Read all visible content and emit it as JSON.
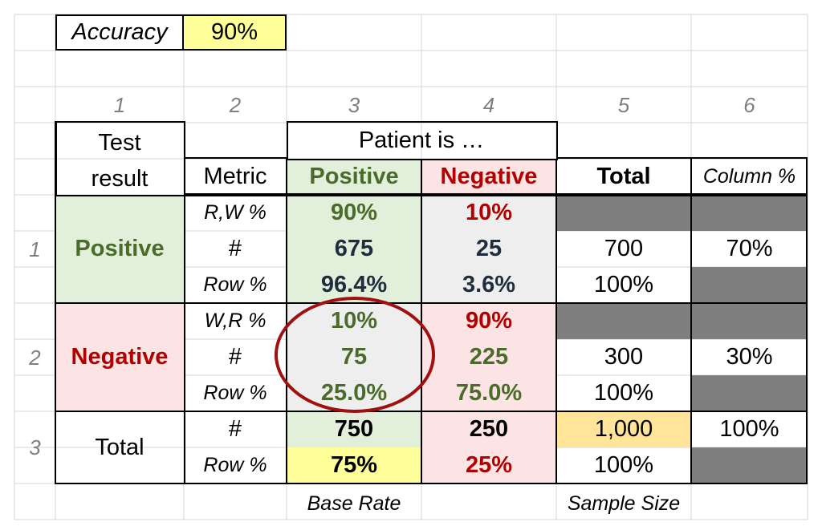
{
  "accuracy": {
    "label": "Accuracy",
    "value": "90%"
  },
  "column_headers": [
    "1",
    "2",
    "3",
    "4",
    "5",
    "6"
  ],
  "row_headers": [
    "1",
    "2",
    "3"
  ],
  "header": {
    "test_result_line1": "Test",
    "test_result_line2": "result",
    "metric": "Metric",
    "patient_is": "Patient is …",
    "positive": "Positive",
    "negative": "Negative",
    "total": "Total",
    "column_pct": "Column %"
  },
  "row_positive": {
    "label": "Positive",
    "metrics": [
      "R,W %",
      "#",
      "Row %"
    ],
    "pos": [
      "90%",
      "675",
      "96.4%"
    ],
    "neg": [
      "10%",
      "25",
      "3.6%"
    ],
    "total": [
      "700",
      "100%"
    ],
    "column_pct": "70%"
  },
  "row_negative": {
    "label": "Negative",
    "metrics": [
      "W,R %",
      "#",
      "Row %"
    ],
    "pos": [
      "10%",
      "75",
      "25.0%"
    ],
    "neg": [
      "90%",
      "225",
      "75.0%"
    ],
    "total": [
      "300",
      "100%"
    ],
    "column_pct": "30%"
  },
  "row_total": {
    "label": "Total",
    "metrics": [
      "#",
      "Row %"
    ],
    "pos": [
      "750",
      "75%"
    ],
    "neg": [
      "250",
      "25%"
    ],
    "total": [
      "1,000",
      "100%"
    ],
    "column_pct": "100%"
  },
  "footer": {
    "base_rate": "Base Rate",
    "sample_size": "Sample Size"
  },
  "colors": {
    "green_text": "#4a6b2a",
    "red_text": "#b00000",
    "ring": "#a01010",
    "dark_fill": "#7f7f7f"
  }
}
